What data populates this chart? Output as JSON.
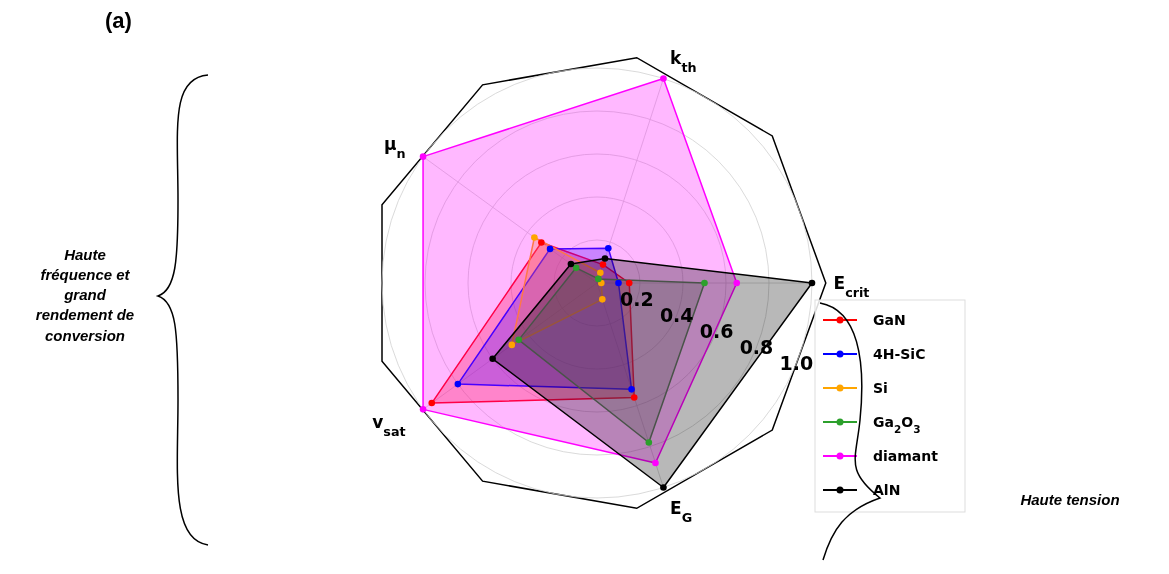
{
  "chart_data": {
    "type": "radar",
    "categories": [
      "k$_{th}$",
      "E$_{crit}$",
      "E$_{G}$",
      "v$_{sat}$",
      "μ$_{n}$"
    ],
    "series": [
      {
        "name": "GaN",
        "color": "#ff0000",
        "values": [
          0.09,
          0.15,
          0.56,
          0.95,
          0.32
        ]
      },
      {
        "name": "4H-SiC",
        "color": "#0000ff",
        "values": [
          0.17,
          0.1,
          0.52,
          0.8,
          0.27
        ]
      },
      {
        "name": "Si",
        "color": "#ffa500",
        "values": [
          0.05,
          0.02,
          0.08,
          0.49,
          0.36
        ]
      },
      {
        "name": "Ga$_{2}$O$_{3}$",
        "color": "#2ca02c",
        "values": [
          0.02,
          0.5,
          0.78,
          0.45,
          0.12
        ]
      },
      {
        "name": "diamant",
        "color": "#ff00ff",
        "values": [
          1.0,
          0.65,
          0.88,
          1.0,
          1.0
        ]
      },
      {
        "name": "AlN",
        "color": "#000000",
        "values": [
          0.12,
          1.0,
          1.0,
          0.6,
          0.15
        ]
      }
    ],
    "ylim": [
      0,
      1
    ],
    "yticks": [
      0.2,
      0.4,
      0.6,
      0.8,
      {
        "value": 1,
        "label": "1.0"
      }
    ],
    "grid": true,
    "legend": "right",
    "marker": "circle",
    "annotations": [
      "(a)",
      "Haute fréquence et grand rendement de conversion",
      "Haute tension"
    ]
  }
}
